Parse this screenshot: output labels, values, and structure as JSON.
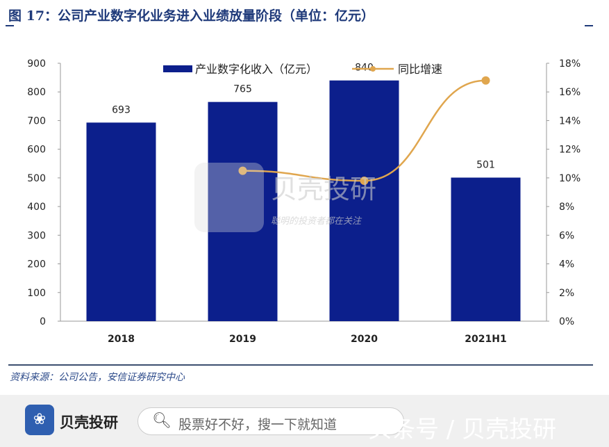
{
  "title": "图 17：公司产业数字化业务进入业绩放量阶段（单位：亿元）",
  "chart_data": {
    "type": "bar+line",
    "categories": [
      "2018",
      "2019",
      "2020",
      "2021H1"
    ],
    "series": [
      {
        "name": "产业数字化收入（亿元）",
        "type": "bar",
        "axis": "left",
        "values": [
          693,
          765,
          840,
          501
        ],
        "color": "#0c1f8c"
      },
      {
        "name": "同比增速",
        "type": "line",
        "axis": "right",
        "values": [
          null,
          10.5,
          9.8,
          16.8
        ],
        "unit": "%",
        "color": "#e0a64e"
      }
    ],
    "data_labels": [
      "693",
      "765",
      "840",
      "501"
    ],
    "ylim": [
      0,
      900
    ],
    "yticks": [
      "0",
      "100",
      "200",
      "300",
      "400",
      "500",
      "600",
      "700",
      "800",
      "900"
    ],
    "y2lim": [
      0,
      18
    ],
    "y2ticks": [
      "0%",
      "2%",
      "4%",
      "6%",
      "8%",
      "10%",
      "12%",
      "14%",
      "16%",
      "18%"
    ],
    "legend": "top-center",
    "grid": false
  },
  "watermark": {
    "brand": "贝壳投研",
    "slogan": "聪明的投资者都在关注"
  },
  "source": "资料来源：公司公告，安信证券研究中心",
  "footer": {
    "brand": "贝壳投研",
    "search_placeholder": "股票好不好，搜一下就知道",
    "overlay": "头条号 / 贝壳投研",
    "search_icon": "search-icon"
  }
}
